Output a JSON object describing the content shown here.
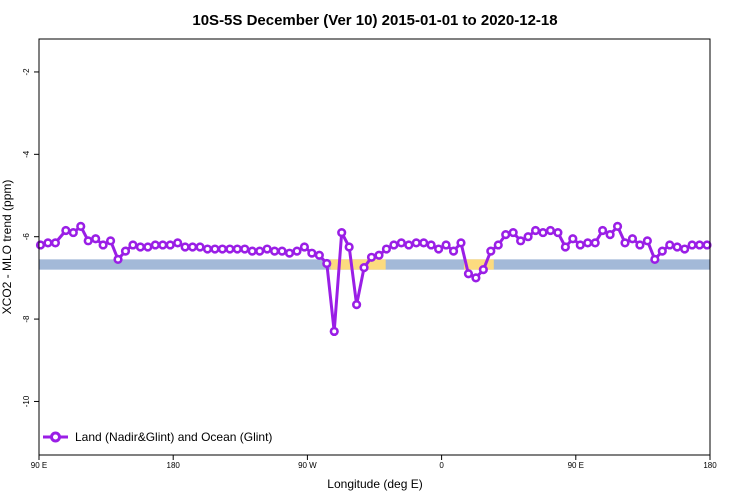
{
  "chart_data": {
    "type": "line",
    "title": "10S-5S December (Ver 10)   2015-01-01 to 2020-12-18",
    "xlabel": "Longitude (deg E)",
    "ylabel": "XCO2 - MLO trend (ppm)",
    "xlim": [
      90,
      540
    ],
    "ylim": [
      -11.3,
      -1.2
    ],
    "xticks": [
      {
        "value": 90,
        "label": "90 E"
      },
      {
        "value": 180,
        "label": "180"
      },
      {
        "value": 270,
        "label": "90 W"
      },
      {
        "value": 360,
        "label": "0"
      },
      {
        "value": 450,
        "label": "90 E"
      },
      {
        "value": 540,
        "label": "180"
      }
    ],
    "yticks": [
      {
        "value": -2,
        "label": "-2"
      },
      {
        "value": -4,
        "label": "-4"
      },
      {
        "value": -6,
        "label": "-6"
      },
      {
        "value": -8,
        "label": "-8"
      },
      {
        "value": -10,
        "label": "-10"
      }
    ],
    "surface_band": {
      "y_top": -6.55,
      "y_bottom": -6.8,
      "ocean_color": "#a3b9d8",
      "land_color": "#fcdb7f",
      "land_segments": [
        [
          285.5,
          322.5
        ],
        [
          375,
          395
        ]
      ]
    },
    "series": [
      {
        "name": "Land (Nadir&Glint) and Ocean (Glint)",
        "color": "#9a1ee6",
        "x": [
          91,
          96,
          101,
          108,
          113,
          118,
          123,
          128,
          133,
          138,
          143,
          148,
          153,
          158,
          163,
          168,
          173,
          178,
          183,
          188,
          193,
          198,
          203,
          208,
          213,
          218,
          223,
          228,
          233,
          238,
          243,
          248,
          253,
          258,
          263,
          268,
          273,
          278,
          283,
          288,
          293,
          298,
          303,
          308,
          313,
          318,
          323,
          328,
          333,
          338,
          343,
          348,
          353,
          358,
          363,
          368,
          373,
          378,
          383,
          388,
          393,
          398,
          403,
          408,
          413,
          418,
          423,
          428,
          433,
          438,
          443,
          448,
          453,
          458,
          463,
          468,
          473,
          478,
          483,
          488,
          493,
          498,
          503,
          508,
          513,
          518,
          523,
          528,
          533,
          538
        ],
        "y": [
          -6.2,
          -6.15,
          -6.15,
          -5.85,
          -5.9,
          -5.75,
          -6.1,
          -6.05,
          -6.2,
          -6.1,
          -6.55,
          -6.35,
          -6.2,
          -6.25,
          -6.25,
          -6.2,
          -6.2,
          -6.2,
          -6.15,
          -6.25,
          -6.25,
          -6.25,
          -6.3,
          -6.3,
          -6.3,
          -6.3,
          -6.3,
          -6.3,
          -6.35,
          -6.35,
          -6.3,
          -6.35,
          -6.35,
          -6.4,
          -6.35,
          -6.25,
          -6.4,
          -6.45,
          -6.65,
          -8.3,
          -5.9,
          -6.25,
          -7.65,
          -6.75,
          -6.5,
          -6.45,
          -6.3,
          -6.2,
          -6.15,
          -6.2,
          -6.15,
          -6.15,
          -6.2,
          -6.3,
          -6.2,
          -6.35,
          -6.15,
          -6.9,
          -7.0,
          -6.8,
          -6.35,
          -6.2,
          -5.95,
          -5.9,
          -6.1,
          -6.0,
          -5.85,
          -5.9,
          -5.85,
          -5.9,
          -6.25,
          -6.05,
          -6.2,
          -6.15,
          -6.15,
          -5.85,
          -5.95,
          -5.75,
          -6.15,
          -6.05,
          -6.2,
          -6.1,
          -6.55,
          -6.35,
          -6.2,
          -6.25,
          -6.3,
          -6.2,
          -6.2,
          -6.2
        ]
      }
    ],
    "legend": {
      "position": "bottom-left"
    }
  }
}
